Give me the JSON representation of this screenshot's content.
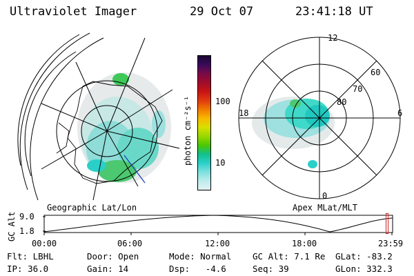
{
  "header": {
    "instrument": "Ultraviolet Imager",
    "date": "29 Oct 07",
    "time": "23:41:18 UT"
  },
  "left_panel": {
    "label": "Geographic Lat/Lon"
  },
  "right_panel": {
    "label": "Apex MLat/MLT",
    "mlt_labels": {
      "top": "12",
      "left": "18",
      "right": "6",
      "bottom": "0"
    },
    "lat_labels": [
      "60",
      "70",
      "80"
    ]
  },
  "colorbar": {
    "unit_label": "photon cm⁻²s⁻¹",
    "ticks": [
      "100",
      "10"
    ],
    "colors": [
      "#1a0833",
      "#3a0a5a",
      "#7a0a48",
      "#a00c2a",
      "#c81414",
      "#e03a10",
      "#f07a00",
      "#f8b800",
      "#d8e000",
      "#9ad800",
      "#4cc800",
      "#12c08a",
      "#2ad0c8",
      "#7ee0e0",
      "#bcecec",
      "#e2f2f2"
    ]
  },
  "timeline": {
    "y_label": "GC Alt",
    "y_ticks": [
      "9.0",
      "1.8"
    ],
    "x_ticks": [
      "00:00",
      "06:00",
      "12:00",
      "18:00",
      "23:59"
    ],
    "marker_fraction": 0.986
  },
  "status": [
    [
      {
        "k": "Flt: ",
        "v": "LBHL"
      },
      {
        "k": "IP: ",
        "v": "36.0"
      }
    ],
    [
      {
        "k": "Door: ",
        "v": "Open"
      },
      {
        "k": "Gain: ",
        "v": "14"
      }
    ],
    [
      {
        "k": "Mode: ",
        "v": "Normal"
      },
      {
        "k": "Dsp: ",
        "v": "  -4.6"
      }
    ],
    [
      {
        "k": "GC Alt: ",
        "v": "7.1 Re"
      },
      {
        "k": "Seq: ",
        "v": "39"
      }
    ],
    [
      {
        "k": "GLat: ",
        "v": "-83.2"
      },
      {
        "k": "GLon: ",
        "v": "332.3"
      }
    ]
  ]
}
